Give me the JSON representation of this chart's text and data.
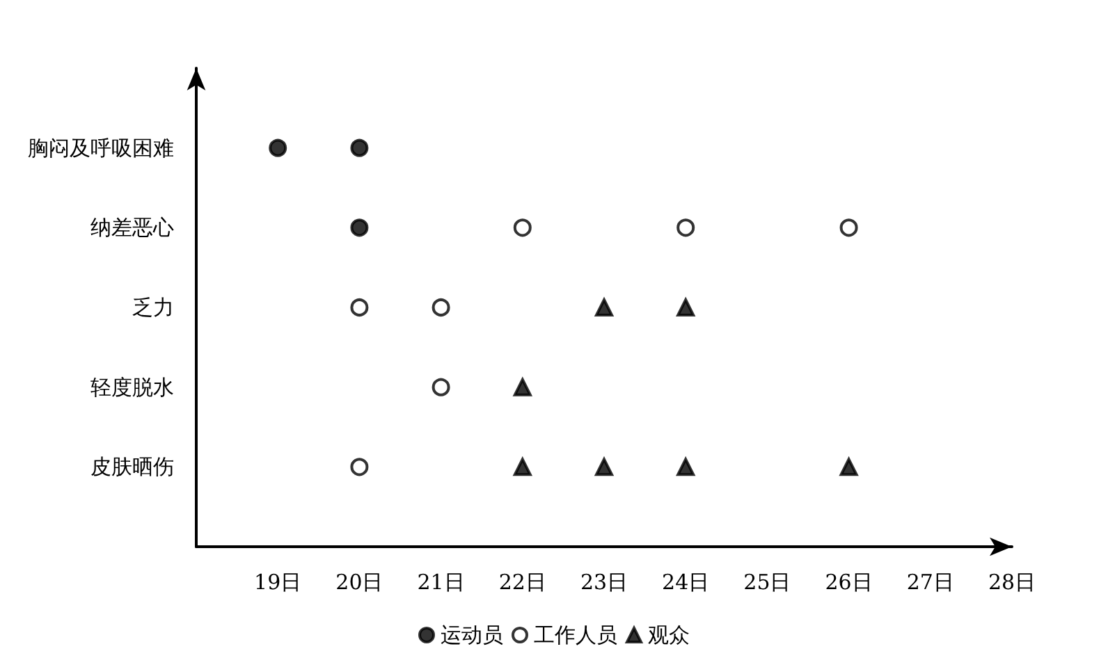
{
  "chart_data": {
    "type": "scatter",
    "orientation": "horizontal",
    "categories": [
      "胸闷及呼吸困难",
      "纳差恶心",
      "乏力",
      "轻度脱水",
      "皮肤晒伤"
    ],
    "xlim": [
      18,
      28
    ],
    "xticks": [
      {
        "value": 19,
        "label": "19日"
      },
      {
        "value": 20,
        "label": "20日"
      },
      {
        "value": 21,
        "label": "21日"
      },
      {
        "value": 22,
        "label": "22日"
      },
      {
        "value": 23,
        "label": "23日"
      },
      {
        "value": 24,
        "label": "24日"
      },
      {
        "value": 25,
        "label": "25日"
      },
      {
        "value": 26,
        "label": "26日"
      },
      {
        "value": 27,
        "label": "27日"
      },
      {
        "value": 28,
        "label": "28日"
      }
    ],
    "series": [
      {
        "name": "运动员",
        "color": "#000000",
        "marker": "circle",
        "values": [
          19,
          20,
          null,
          null,
          null
        ]
      },
      {
        "color": "#000000",
        "marker": "circle",
        "values": [
          20,
          null,
          null,
          null,
          null
        ]
      },
      {
        "name": "工作人员",
        "color": "#ffffff",
        "marker": "circle",
        "values": [
          null,
          22,
          20,
          21,
          20
        ]
      },
      {
        "color": "#ffffff",
        "marker": "circle",
        "values": [
          null,
          24,
          21,
          null,
          null
        ]
      },
      {
        "color": "#ffffff",
        "marker": "circle",
        "values": [
          null,
          26,
          null,
          null,
          null
        ]
      },
      {
        "name": "观众",
        "color": "#000000",
        "marker": "triangle",
        "values": [
          null,
          null,
          23,
          22,
          22
        ]
      },
      {
        "color": "#000000",
        "marker": "triangle",
        "values": [
          null,
          null,
          24,
          null,
          23
        ]
      },
      {
        "color": "#000000",
        "marker": "triangle",
        "values": [
          null,
          null,
          null,
          null,
          24
        ]
      },
      {
        "color": "#000000",
        "marker": "triangle",
        "values": [
          null,
          null,
          null,
          null,
          26
        ]
      }
    ],
    "grid": false,
    "legend": "bottom"
  }
}
